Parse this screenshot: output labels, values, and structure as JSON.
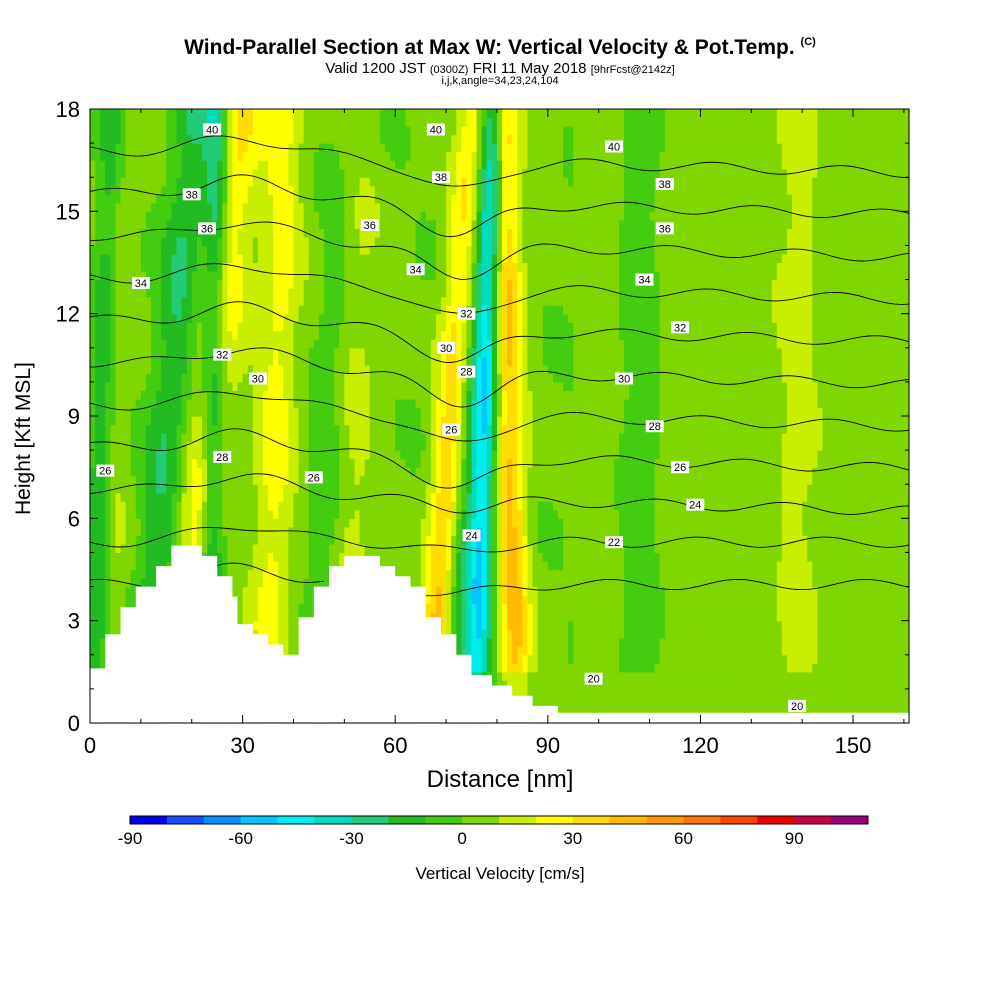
{
  "header": {
    "title_main": "Wind-Parallel Section at Max W: Vertical Velocity & Pot.Temp.",
    "title_mark": "(C)",
    "valid_prefix": "Valid 1200 JST",
    "valid_utc": "(0300Z)",
    "valid_date": "FRI 11 May 2018",
    "valid_fcst": "[9hrFcst@2142z]",
    "indices": "i,j,k,angle=34,23,24,104"
  },
  "chart_data": {
    "type": "heatmap",
    "title": "Wind-Parallel Section at Max W: Vertical Velocity & Pot.Temp.",
    "xlabel": "Distance [nm]",
    "ylabel": "Height [Kft MSL]",
    "xlim": [
      0,
      161
    ],
    "ylim": [
      0,
      18
    ],
    "xticks": [
      0,
      30,
      60,
      90,
      120,
      150
    ],
    "yticks": [
      0,
      3,
      6,
      9,
      12,
      15,
      18
    ],
    "colorbar": {
      "label": "Vertical Velocity [cm/s]",
      "range": [
        -90,
        110
      ],
      "step": 10,
      "tick_values": [
        -90,
        -60,
        -30,
        0,
        30,
        60,
        90
      ],
      "colors": [
        "#0000ee",
        "#1a4cff",
        "#0090ff",
        "#00c8ff",
        "#00eeee",
        "#00ddbb",
        "#22cc77",
        "#22bb22",
        "#44cc11",
        "#7fd600",
        "#c8ee00",
        "#ffff00",
        "#ffdd00",
        "#ffbb00",
        "#ff9900",
        "#ff7700",
        "#ff4400",
        "#ee0000",
        "#cc0044",
        "#990077"
      ]
    },
    "updraft_bands": [
      {
        "center_x": 22,
        "tilt": 0.62,
        "amplitude": 30,
        "width": 4.5
      },
      {
        "center_x": 36,
        "tilt": 0.2,
        "amplitude": 22,
        "width": 4
      },
      {
        "center_x": 51,
        "tilt": 0.15,
        "amplitude": 15,
        "width": 4
      },
      {
        "center_x": 70,
        "tilt": 0.45,
        "amplitude": 55,
        "width": 3.2
      },
      {
        "center_x": 83,
        "tilt": -0.15,
        "amplitude": 40,
        "width": 3
      },
      {
        "center_x": 139,
        "tilt": 0,
        "amplitude": 14,
        "width": 4
      },
      {
        "center_x": 4,
        "tilt": 0.1,
        "amplitude": 12,
        "width": 3
      }
    ],
    "downdraft_bands": [
      {
        "center_x": 14,
        "tilt": 0.55,
        "amplitude": -22,
        "width": 4
      },
      {
        "center_x": 24,
        "tilt": 0.1,
        "amplitude": -38,
        "width": 2.5
      },
      {
        "center_x": 72,
        "tilt": 0.3,
        "amplitude": -30,
        "width": 3.5
      },
      {
        "center_x": 77,
        "tilt": 0.2,
        "amplitude": -50,
        "width": 2.5
      },
      {
        "center_x": 108,
        "tilt": 0,
        "amplitude": -20,
        "width": 4
      },
      {
        "center_x": 2,
        "tilt": 0.2,
        "amplitude": -25,
        "width": 2.5
      },
      {
        "center_x": 47,
        "tilt": 0.4,
        "amplitude": -12,
        "width": 4
      }
    ],
    "terrain": [
      [
        0,
        1.6
      ],
      [
        3,
        1.6
      ],
      [
        3,
        2.6
      ],
      [
        6,
        2.6
      ],
      [
        6,
        3.4
      ],
      [
        9,
        3.4
      ],
      [
        9,
        4.0
      ],
      [
        13,
        4.0
      ],
      [
        13,
        4.6
      ],
      [
        16,
        4.6
      ],
      [
        16,
        5.2
      ],
      [
        22,
        5.2
      ],
      [
        22,
        4.9
      ],
      [
        25,
        4.9
      ],
      [
        25,
        4.3
      ],
      [
        28,
        4.3
      ],
      [
        28,
        3.7
      ],
      [
        29,
        3.7
      ],
      [
        29,
        2.9
      ],
      [
        32,
        2.9
      ],
      [
        32,
        2.6
      ],
      [
        35,
        2.6
      ],
      [
        35,
        2.3
      ],
      [
        38,
        2.3
      ],
      [
        38,
        2.0
      ],
      [
        41,
        2.0
      ],
      [
        41,
        3.1
      ],
      [
        44,
        3.1
      ],
      [
        44,
        4.0
      ],
      [
        47,
        4.0
      ],
      [
        47,
        4.6
      ],
      [
        50,
        4.6
      ],
      [
        50,
        4.9
      ],
      [
        57,
        4.9
      ],
      [
        57,
        4.6
      ],
      [
        60,
        4.6
      ],
      [
        60,
        4.3
      ],
      [
        63,
        4.3
      ],
      [
        63,
        4.0
      ],
      [
        66,
        4.0
      ],
      [
        66,
        3.1
      ],
      [
        69,
        3.1
      ],
      [
        69,
        2.6
      ],
      [
        72,
        2.6
      ],
      [
        72,
        2.0
      ],
      [
        75,
        2.0
      ],
      [
        75,
        1.4
      ],
      [
        79,
        1.4
      ],
      [
        79,
        1.1
      ],
      [
        83,
        1.1
      ],
      [
        83,
        0.8
      ],
      [
        87,
        0.8
      ],
      [
        87,
        0.5
      ],
      [
        92,
        0.5
      ],
      [
        92,
        0.3
      ],
      [
        161,
        0.3
      ]
    ],
    "theta_levels": [
      20,
      22,
      24,
      26,
      28,
      30,
      32,
      34,
      36,
      38,
      40
    ],
    "theta_labels": [
      {
        "text": "40",
        "x": 24,
        "y": 17.4
      },
      {
        "text": "38",
        "x": 20,
        "y": 15.5
      },
      {
        "text": "36",
        "x": 23,
        "y": 14.5
      },
      {
        "text": "34",
        "x": 10,
        "y": 12.9
      },
      {
        "text": "32",
        "x": 26,
        "y": 10.8
      },
      {
        "text": "30",
        "x": 33,
        "y": 10.1
      },
      {
        "text": "28",
        "x": 26,
        "y": 7.8
      },
      {
        "text": "26",
        "x": 3,
        "y": 7.4
      },
      {
        "text": "26",
        "x": 44,
        "y": 7.2
      },
      {
        "text": "36",
        "x": 55,
        "y": 14.6
      },
      {
        "text": "40",
        "x": 68,
        "y": 17.4
      },
      {
        "text": "38",
        "x": 69,
        "y": 16.0
      },
      {
        "text": "34",
        "x": 64,
        "y": 13.3
      },
      {
        "text": "32",
        "x": 74,
        "y": 12.0
      },
      {
        "text": "30",
        "x": 70,
        "y": 11.0
      },
      {
        "text": "28",
        "x": 74,
        "y": 10.3
      },
      {
        "text": "26",
        "x": 71,
        "y": 8.6
      },
      {
        "text": "24",
        "x": 75,
        "y": 5.5
      },
      {
        "text": "40",
        "x": 103,
        "y": 16.9
      },
      {
        "text": "38",
        "x": 113,
        "y": 15.8
      },
      {
        "text": "36",
        "x": 113,
        "y": 14.5
      },
      {
        "text": "34",
        "x": 109,
        "y": 13.0
      },
      {
        "text": "32",
        "x": 116,
        "y": 11.6
      },
      {
        "text": "30",
        "x": 105,
        "y": 10.1
      },
      {
        "text": "28",
        "x": 111,
        "y": 8.7
      },
      {
        "text": "26",
        "x": 116,
        "y": 7.5
      },
      {
        "text": "24",
        "x": 119,
        "y": 6.4
      },
      {
        "text": "22",
        "x": 103,
        "y": 5.3
      },
      {
        "text": "20",
        "x": 99,
        "y": 1.3
      },
      {
        "text": "20",
        "x": 139,
        "y": 0.5
      }
    ]
  }
}
